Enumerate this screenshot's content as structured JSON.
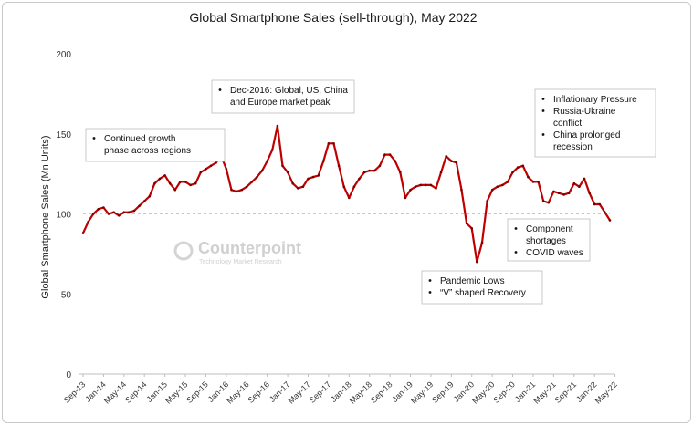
{
  "chart_data": {
    "type": "line",
    "title": "Global Smartphone Sales (sell-through), May 2022",
    "ylabel": "Global Smartphone Sales (Mn Units)",
    "xlabel": "",
    "ylim": [
      0,
      200
    ],
    "yticks": [
      0,
      50,
      100,
      150,
      200
    ],
    "reference_line": 100,
    "grid": false,
    "line_color": "#c00000",
    "x_tick_labels": [
      "Sep-13",
      "Jan-14",
      "May-14",
      "Sep-14",
      "Jan-15",
      "May-15",
      "Sep-15",
      "Jan-16",
      "May-16",
      "Sep-16",
      "Jan-17",
      "May-17",
      "Sep-17",
      "Jan-18",
      "May-18",
      "Sep-18",
      "Jan-19",
      "May-19",
      "Sep-19",
      "Jan-20",
      "May-20",
      "Sep-20",
      "Jan-21",
      "May-21",
      "Sep-21",
      "Jan-22",
      "May-22"
    ],
    "start_month": "Sep-13",
    "values": [
      88,
      95,
      100,
      103,
      104,
      100,
      101,
      99,
      101,
      101,
      102,
      105,
      108,
      111,
      119,
      122,
      124,
      119,
      115,
      120,
      120,
      118,
      119,
      126,
      128,
      130,
      132,
      136,
      128,
      115,
      114,
      115,
      117,
      120,
      123,
      127,
      133,
      140,
      155,
      130,
      126,
      119,
      116,
      117,
      122,
      123,
      124,
      133,
      144,
      144,
      130,
      117,
      110,
      117,
      122,
      126,
      127,
      127,
      130,
      137,
      137,
      133,
      126,
      110,
      115,
      117,
      118,
      118,
      118,
      116,
      126,
      136,
      133,
      132,
      115,
      94,
      91,
      70,
      82,
      108,
      115,
      117,
      118,
      120,
      126,
      129,
      130,
      123,
      120,
      120,
      108,
      107,
      114,
      113,
      112,
      113,
      119,
      117,
      122,
      113,
      106,
      106,
      101,
      96
    ],
    "annotations": [
      {
        "lines": [
          "Continued growth",
          "phase across regions"
        ],
        "bullets": [
          true,
          false
        ]
      },
      {
        "lines": [
          "Dec-2016: Global, US, China",
          "and Europe market peak"
        ],
        "bullets": [
          true,
          false
        ]
      },
      {
        "lines": [
          "Inflationary Pressure",
          "Russia-Ukraine",
          "conflict",
          "China prolonged",
          "recession"
        ],
        "bullets": [
          true,
          true,
          false,
          true,
          false
        ]
      },
      {
        "lines": [
          "Component",
          "shortages",
          "COVID waves"
        ],
        "bullets": [
          true,
          false,
          true
        ]
      },
      {
        "lines": [
          "Pandemic Lows",
          "“V” shaped Recovery"
        ],
        "bullets": [
          true,
          true
        ]
      }
    ]
  },
  "watermark": {
    "brand": "Counterpoint",
    "tagline": "Technology Market Research"
  }
}
